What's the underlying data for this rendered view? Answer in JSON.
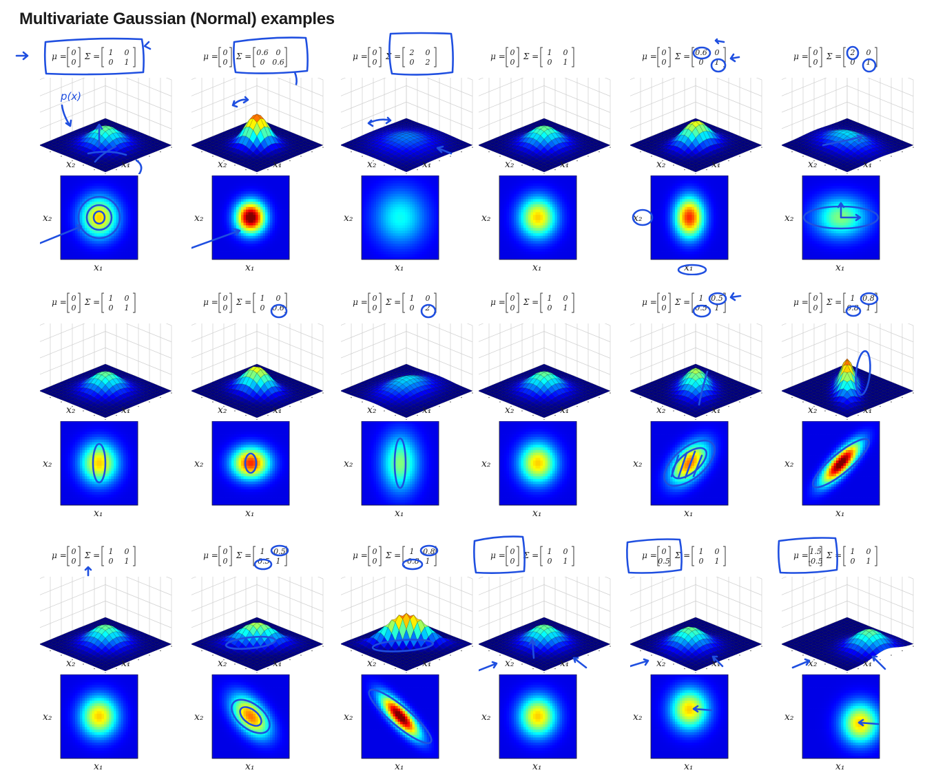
{
  "title": "Multivariate Gaussian (Normal) examples",
  "axis_labels": {
    "x1": "x₁",
    "x2": "x₂"
  },
  "colormap": [
    "#00008f",
    "#0000ff",
    "#0080ff",
    "#00ffff",
    "#80ff80",
    "#ffff00",
    "#ff8000",
    "#ff0000",
    "#800000"
  ],
  "annotation_color": "#1f4fe0",
  "annotations": {
    "px_label": "p(x)"
  },
  "rows": [
    [
      {
        "mu": [
          "0",
          "0"
        ],
        "sigma": [
          [
            "1",
            "0"
          ],
          [
            "0",
            "1"
          ]
        ],
        "mx": 0,
        "my": 0,
        "s11": 1,
        "s22": 1,
        "s12": 0
      },
      {
        "mu": [
          "0",
          "0"
        ],
        "sigma": [
          [
            "0.6",
            "0"
          ],
          [
            "0",
            "0.6"
          ]
        ],
        "mx": 0,
        "my": 0,
        "s11": 0.6,
        "s22": 0.6,
        "s12": 0
      },
      {
        "mu": [
          "0",
          "0"
        ],
        "sigma": [
          [
            "2",
            "0"
          ],
          [
            "0",
            "2"
          ]
        ],
        "mx": 0,
        "my": 0,
        "s11": 2,
        "s22": 2,
        "s12": 0
      },
      {
        "mu": [
          "0",
          "0"
        ],
        "sigma": [
          [
            "1",
            "0"
          ],
          [
            "0",
            "1"
          ]
        ],
        "mx": 0,
        "my": 0,
        "s11": 1,
        "s22": 1,
        "s12": 0
      },
      {
        "mu": [
          "0",
          "0"
        ],
        "sigma": [
          [
            "0.6",
            "0"
          ],
          [
            "0",
            "1"
          ]
        ],
        "mx": 0,
        "my": 0,
        "s11": 0.6,
        "s22": 1,
        "s12": 0
      },
      {
        "mu": [
          "0",
          "0"
        ],
        "sigma": [
          [
            "2",
            "0"
          ],
          [
            "0",
            "1"
          ]
        ],
        "mx": 0,
        "my": 0,
        "s11": 2,
        "s22": 1,
        "s12": 0
      }
    ],
    [
      {
        "mu": [
          "0",
          "0"
        ],
        "sigma": [
          [
            "1",
            "0"
          ],
          [
            "0",
            "1"
          ]
        ],
        "mx": 0,
        "my": 0,
        "s11": 1,
        "s22": 1,
        "s12": 0
      },
      {
        "mu": [
          "0",
          "0"
        ],
        "sigma": [
          [
            "1",
            "0"
          ],
          [
            "0",
            "0.6"
          ]
        ],
        "mx": 0,
        "my": 0,
        "s11": 1,
        "s22": 0.6,
        "s12": 0
      },
      {
        "mu": [
          "0",
          "0"
        ],
        "sigma": [
          [
            "1",
            "0"
          ],
          [
            "0",
            "2"
          ]
        ],
        "mx": 0,
        "my": 0,
        "s11": 1,
        "s22": 2,
        "s12": 0
      },
      {
        "mu": [
          "0",
          "0"
        ],
        "sigma": [
          [
            "1",
            "0"
          ],
          [
            "0",
            "1"
          ]
        ],
        "mx": 0,
        "my": 0,
        "s11": 1,
        "s22": 1,
        "s12": 0
      },
      {
        "mu": [
          "0",
          "0"
        ],
        "sigma": [
          [
            "1",
            "0.5"
          ],
          [
            "0.5",
            "1"
          ]
        ],
        "mx": 0,
        "my": 0,
        "s11": 1,
        "s22": 1,
        "s12": 0.5
      },
      {
        "mu": [
          "0",
          "0"
        ],
        "sigma": [
          [
            "1",
            "0.8"
          ],
          [
            "0.8",
            "1"
          ]
        ],
        "mx": 0,
        "my": 0,
        "s11": 1,
        "s22": 1,
        "s12": 0.8
      }
    ],
    [
      {
        "mu": [
          "0",
          "0"
        ],
        "sigma": [
          [
            "1",
            "0"
          ],
          [
            "0",
            "1"
          ]
        ],
        "mx": 0,
        "my": 0,
        "s11": 1,
        "s22": 1,
        "s12": 0
      },
      {
        "mu": [
          "0",
          "0"
        ],
        "sigma": [
          [
            "1",
            "-0.5"
          ],
          [
            "-0.5",
            "1"
          ]
        ],
        "mx": 0,
        "my": 0,
        "s11": 1,
        "s22": 1,
        "s12": -0.5
      },
      {
        "mu": [
          "0",
          "0"
        ],
        "sigma": [
          [
            "1",
            "-0.8"
          ],
          [
            "-0.8",
            "1"
          ]
        ],
        "mx": 0,
        "my": 0,
        "s11": 1,
        "s22": 1,
        "s12": -0.8
      },
      {
        "mu": [
          "0",
          "0"
        ],
        "sigma": [
          [
            "1",
            "0"
          ],
          [
            "0",
            "1"
          ]
        ],
        "mx": 0,
        "my": 0,
        "s11": 1,
        "s22": 1,
        "s12": 0
      },
      {
        "mu": [
          "0",
          "0.5"
        ],
        "sigma": [
          [
            "1",
            "0"
          ],
          [
            "0",
            "1"
          ]
        ],
        "mx": 0,
        "my": 0.5,
        "s11": 1,
        "s22": 1,
        "s12": 0
      },
      {
        "mu": [
          "1.5",
          "-0.5"
        ],
        "sigma": [
          [
            "1",
            "0"
          ],
          [
            "0",
            "1"
          ]
        ],
        "mx": 1.5,
        "my": -0.5,
        "s11": 1,
        "s22": 1,
        "s12": 0
      }
    ]
  ]
}
